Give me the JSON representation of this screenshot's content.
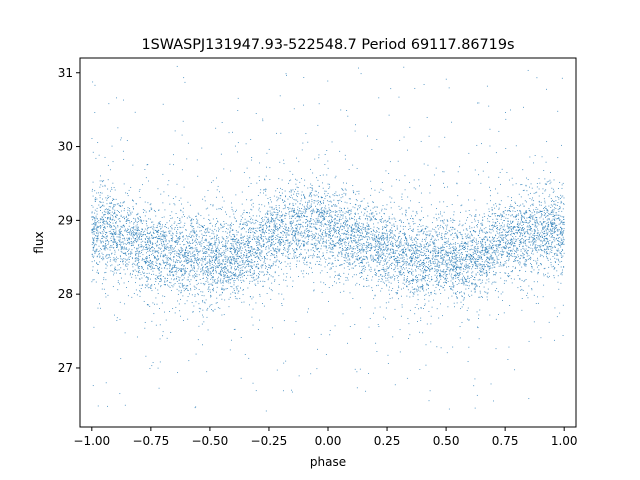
{
  "chart_data": {
    "type": "scatter",
    "title": "1SWASPJ131947.93-522548.7 Period 69117.86719s",
    "xlabel": "phase",
    "ylabel": "flux",
    "xlim": [
      -1.05,
      1.05
    ],
    "ylim": [
      26.2,
      31.2
    ],
    "xticks": [
      -1.0,
      -0.75,
      -0.5,
      -0.25,
      0.0,
      0.25,
      0.5,
      0.75,
      1.0
    ],
    "xtick_labels": [
      "−1.00",
      "−0.75",
      "−0.50",
      "−0.25",
      "0.00",
      "0.25",
      "0.50",
      "0.75",
      "1.00"
    ],
    "yticks": [
      27,
      28,
      29,
      30,
      31
    ],
    "ytick_labels": [
      "27",
      "28",
      "29",
      "30",
      "31"
    ],
    "grid": false,
    "legend": "none",
    "point_color": "#1f77b4",
    "series": [
      {
        "points_x": [
          -1.0,
          -0.95,
          -0.9,
          -0.85,
          -0.8,
          -0.75,
          -0.7,
          -0.65,
          -0.6,
          -0.55,
          -0.5,
          -0.45,
          -0.4,
          -0.35,
          -0.3,
          -0.25,
          -0.2,
          -0.15,
          -0.1,
          -0.05,
          0.0,
          0.05,
          0.1,
          0.15,
          0.2,
          0.25,
          0.3,
          0.35,
          0.4,
          0.45,
          0.5,
          0.55,
          0.6,
          0.65,
          0.7,
          0.75,
          0.8,
          0.85,
          0.9,
          0.95,
          1.0
        ],
        "points_y": [
          28.85,
          28.84,
          28.8,
          28.74,
          28.68,
          28.6,
          28.55,
          28.52,
          28.52,
          28.53,
          28.5,
          28.48,
          28.5,
          28.58,
          28.68,
          28.78,
          28.86,
          28.9,
          28.92,
          28.92,
          28.9,
          28.84,
          28.78,
          28.72,
          28.65,
          28.6,
          28.55,
          28.52,
          28.5,
          28.48,
          28.48,
          28.46,
          28.48,
          28.55,
          28.65,
          28.74,
          28.8,
          28.84,
          28.86,
          28.86,
          28.85
        ]
      }
    ]
  }
}
